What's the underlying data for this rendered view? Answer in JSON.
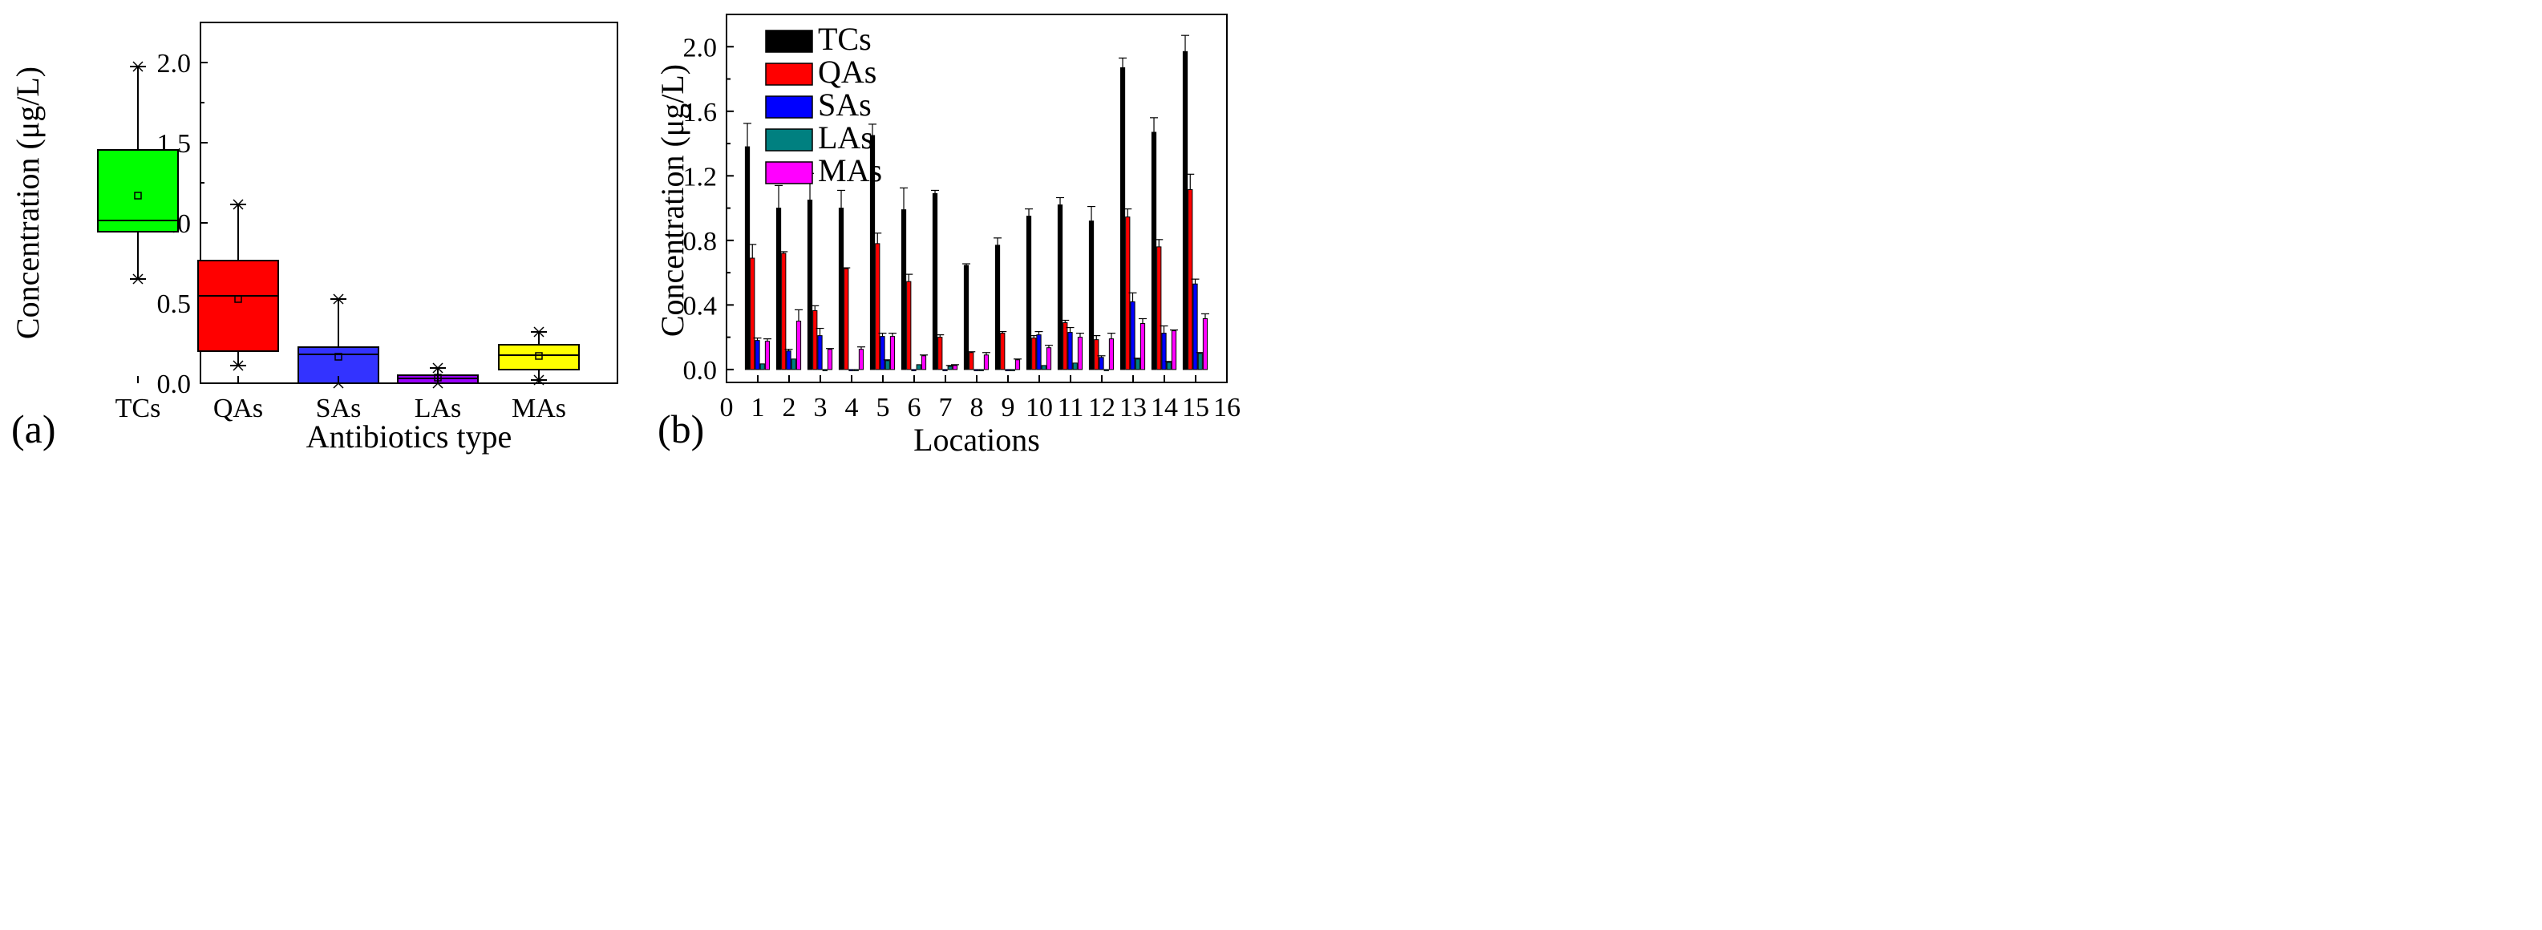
{
  "chart_data": [
    {
      "panel_label": "(a)",
      "type": "box",
      "xlabel": "Antibiotics type",
      "ylabel": "Concentration (μg/L)",
      "ylim": [
        0,
        2.25
      ],
      "yticks": [
        "0.0",
        "0.5",
        "1.0",
        "1.5",
        "2.0"
      ],
      "grid": false,
      "categories": [
        "TCs",
        "QAs",
        "SAs",
        "LAs",
        "MAs"
      ],
      "boxes": [
        {
          "name": "TCs",
          "color": "#00ff00",
          "min": 0.65,
          "q1": 0.945,
          "median": 1.015,
          "q3": 1.455,
          "max": 1.975,
          "mean": 1.17
        },
        {
          "name": "QAs",
          "color": "#ff0000",
          "min": 0.11,
          "q1": 0.2,
          "median": 0.545,
          "q3": 0.765,
          "max": 1.115,
          "mean": 0.525
        },
        {
          "name": "SAs",
          "color": "#3333ff",
          "min": 0.0,
          "q1": 0.0,
          "median": 0.18,
          "q3": 0.225,
          "max": 0.525,
          "mean": 0.165
        },
        {
          "name": "LAs",
          "color": "#9900ff",
          "min": 0.0,
          "q1": 0.0,
          "median": 0.03,
          "q3": 0.05,
          "max": 0.095,
          "mean": 0.035
        },
        {
          "name": "MAs",
          "color": "#ffff00",
          "min": 0.02,
          "q1": 0.085,
          "median": 0.175,
          "q3": 0.24,
          "max": 0.32,
          "mean": 0.17
        }
      ]
    },
    {
      "panel_label": "(b)",
      "type": "bar",
      "xlabel": "Locations",
      "ylabel": "Concentration (μg/L)",
      "xlim": [
        0,
        16
      ],
      "ylim": [
        -0.08,
        2.2
      ],
      "xticks": [
        "0",
        "1",
        "2",
        "3",
        "4",
        "5",
        "6",
        "7",
        "8",
        "9",
        "10",
        "11",
        "12",
        "13",
        "14",
        "15",
        "16"
      ],
      "yticks": [
        "0.0",
        "0.4",
        "0.8",
        "1.2",
        "1.6",
        "2.0"
      ],
      "grid": false,
      "legend": "top-left",
      "categories": [
        1,
        2,
        3,
        4,
        5,
        6,
        7,
        8,
        9,
        10,
        11,
        12,
        13,
        14,
        15
      ],
      "series": [
        {
          "name": "TCs",
          "color": "#000000",
          "values": [
            1.38,
            1.0,
            1.05,
            1.0,
            1.45,
            0.99,
            1.09,
            0.645,
            0.77,
            0.95,
            1.02,
            0.92,
            1.87,
            1.47,
            1.97
          ],
          "errors": [
            0.145,
            0.14,
            0.165,
            0.11,
            0.07,
            0.135,
            0.02,
            0.01,
            0.045,
            0.045,
            0.045,
            0.09,
            0.06,
            0.09,
            0.1
          ]
        },
        {
          "name": "QAs",
          "color": "#ff0000",
          "values": [
            0.69,
            0.72,
            0.365,
            0.625,
            0.78,
            0.545,
            0.2,
            0.105,
            0.225,
            0.195,
            0.29,
            0.185,
            0.945,
            0.76,
            1.115
          ],
          "errors": [
            0.085,
            0.01,
            0.03,
            0.005,
            0.065,
            0.045,
            0.015,
            0.005,
            0.01,
            0.015,
            0.015,
            0.025,
            0.05,
            0.045,
            0.095
          ]
        },
        {
          "name": "SAs",
          "color": "#0000ff",
          "values": [
            0.18,
            0.115,
            0.21,
            0.0,
            0.205,
            0.0,
            0.0,
            0.0,
            0.0,
            0.215,
            0.23,
            0.075,
            0.42,
            0.225,
            0.53
          ],
          "errors": [
            0.015,
            0.01,
            0.045,
            0.0,
            0.02,
            0.0,
            0.0,
            0.0,
            0.0,
            0.02,
            0.03,
            0.01,
            0.055,
            0.045,
            0.03
          ]
        },
        {
          "name": "LAs",
          "color": "#008080",
          "values": [
            0.035,
            0.065,
            0.0,
            0.0,
            0.055,
            0.03,
            0.02,
            0.0,
            0.0,
            0.025,
            0.04,
            0.0,
            0.065,
            0.045,
            0.1
          ],
          "errors": [
            0.0,
            0.0,
            0.0,
            0.0,
            0.005,
            0.0,
            0.005,
            0.0,
            0.0,
            0.0,
            0.0,
            0.0,
            0.005,
            0.005,
            0.005
          ]
        },
        {
          "name": "MAs",
          "color": "#ff00ff",
          "values": [
            0.175,
            0.3,
            0.125,
            0.125,
            0.205,
            0.085,
            0.025,
            0.09,
            0.06,
            0.135,
            0.2,
            0.19,
            0.285,
            0.24,
            0.315
          ],
          "errors": [
            0.015,
            0.07,
            0.005,
            0.015,
            0.02,
            0.005,
            0.005,
            0.015,
            0.005,
            0.015,
            0.025,
            0.035,
            0.03,
            0.005,
            0.03
          ]
        }
      ]
    }
  ]
}
